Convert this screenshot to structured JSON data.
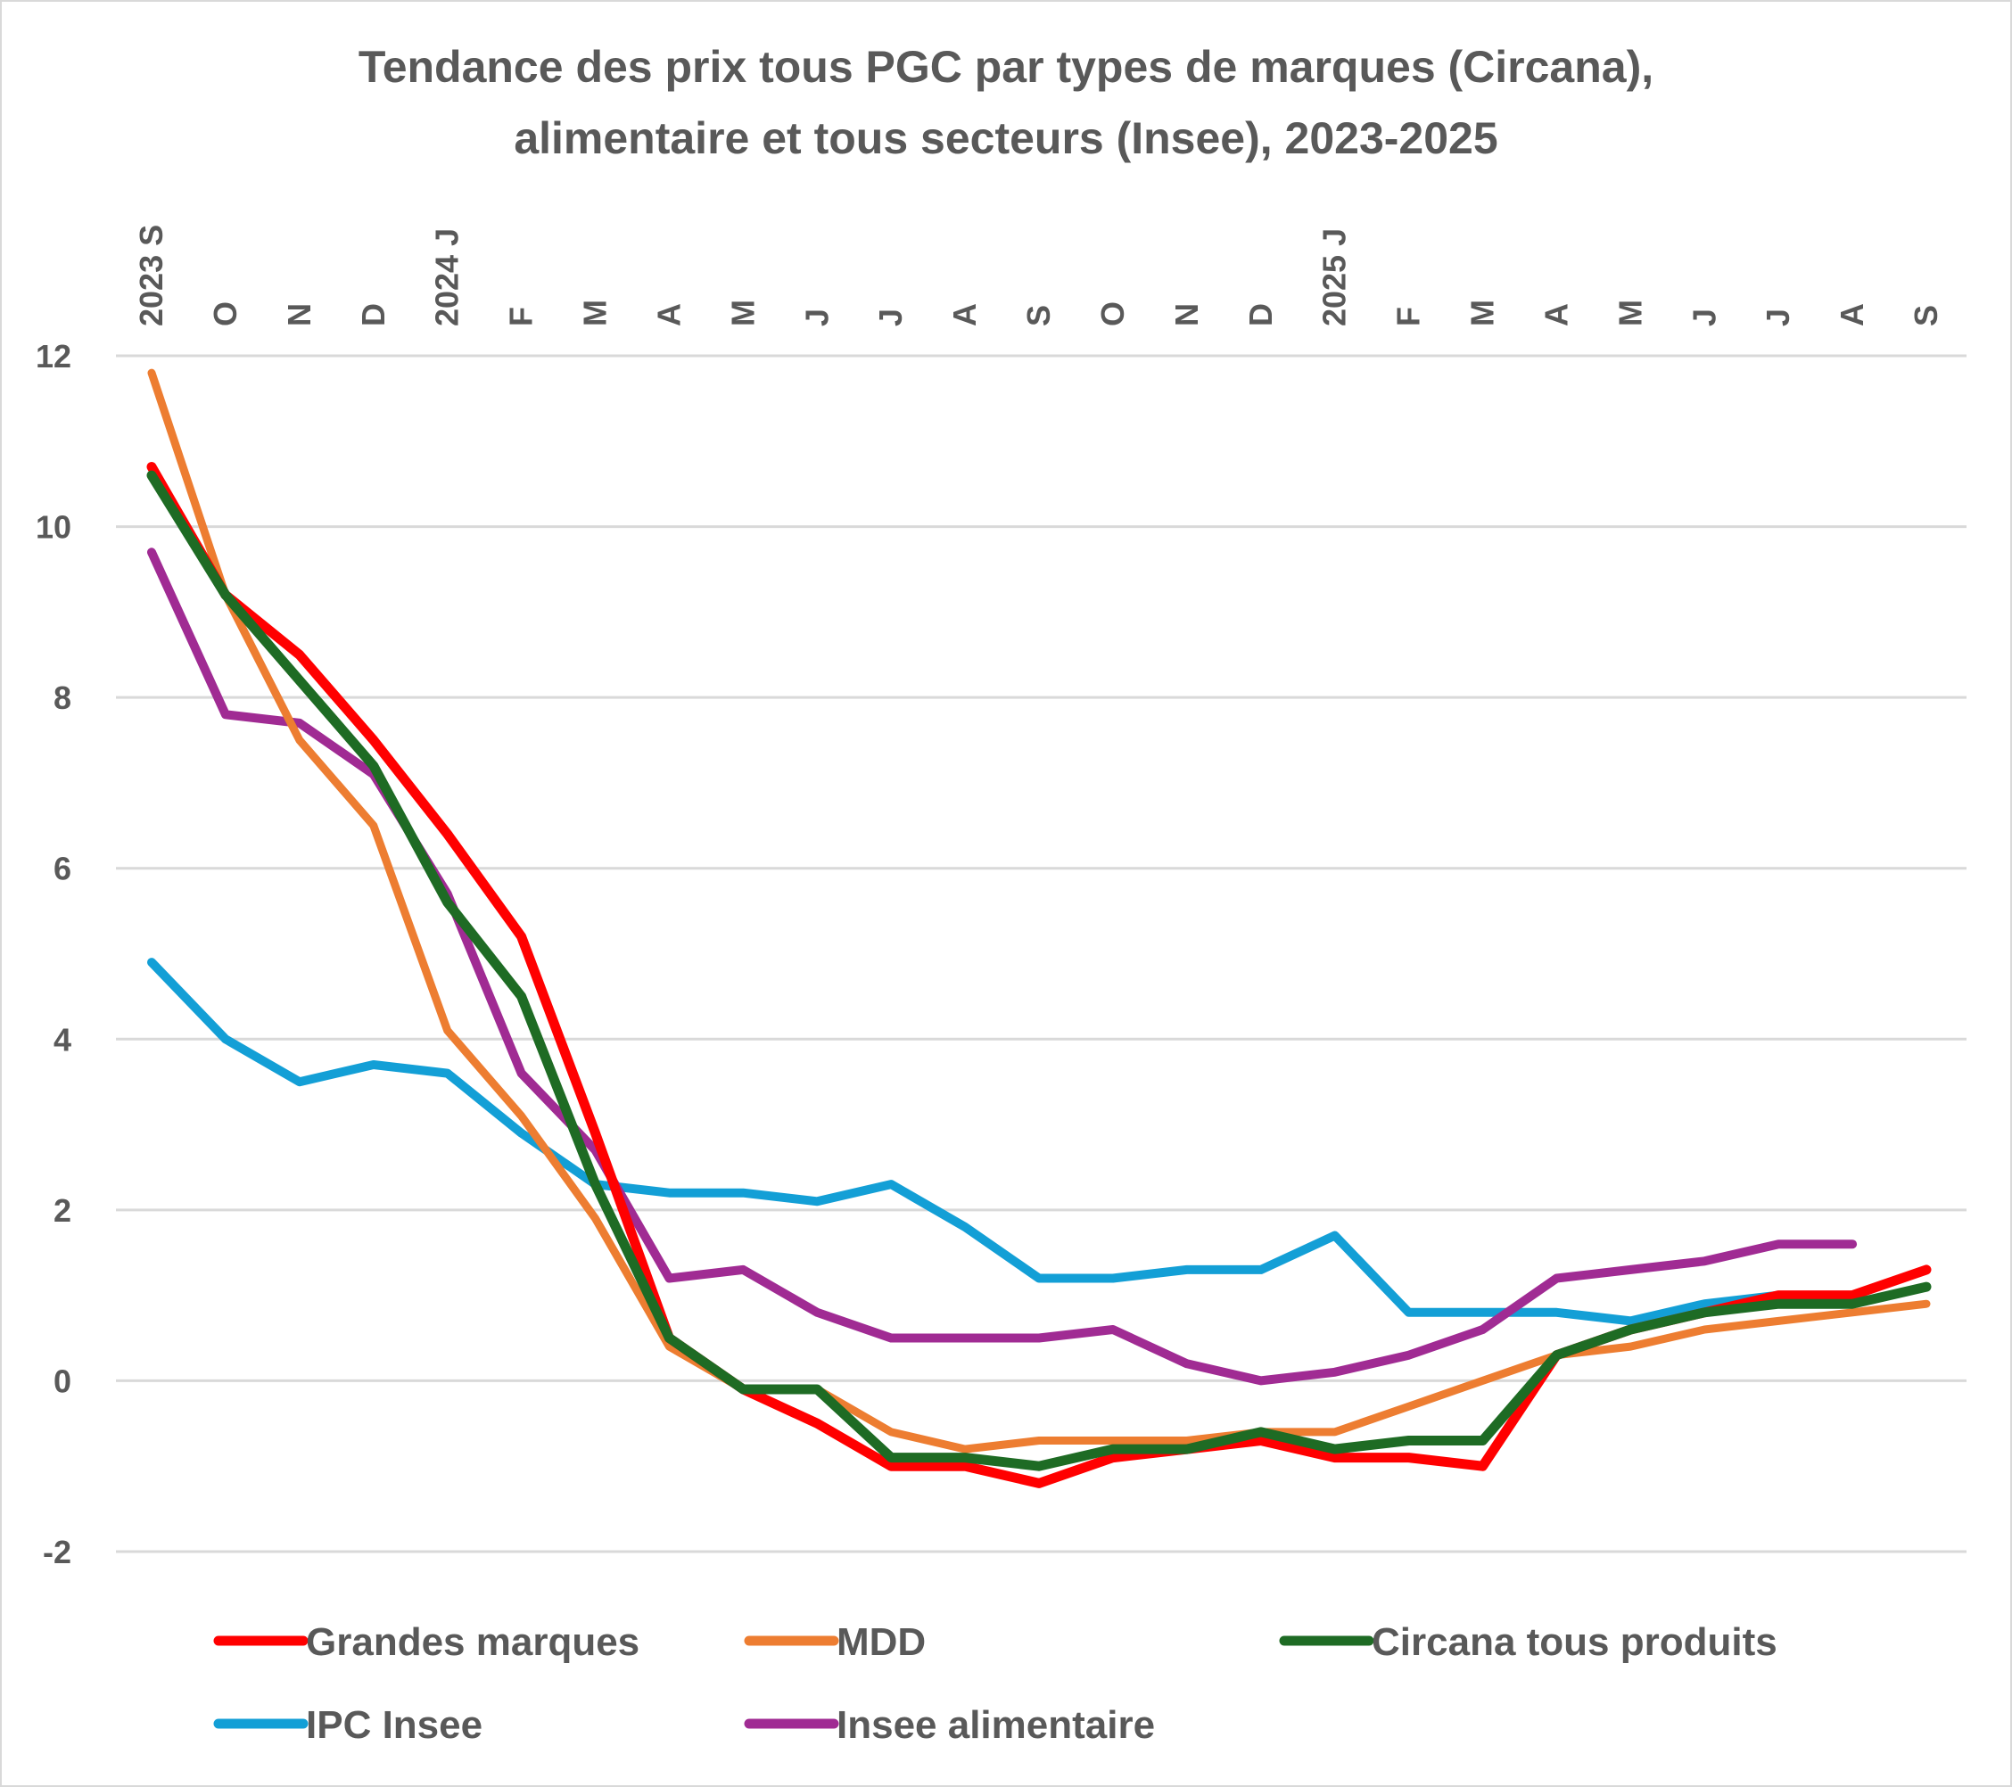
{
  "chart_data": {
    "type": "line",
    "title": "Tendance des prix tous PGC par types de marques (Circana),",
    "title_line2": "alimentaire et tous secteurs (Insee), 2023-2025",
    "xlabel": "",
    "ylabel": "",
    "ylim": [
      -2,
      12
    ],
    "yticks": [
      -2,
      0,
      2,
      4,
      6,
      8,
      10,
      12
    ],
    "ytick_labels": [
      "-2",
      "0",
      "2",
      "4",
      "6",
      "8",
      "10",
      "12"
    ],
    "grid": true,
    "legend_position": "bottom",
    "categories": [
      "2023 S",
      "O",
      "N",
      "D",
      "2024 J",
      "F",
      "M",
      "A",
      "M",
      "J",
      "J",
      "A",
      "S",
      "O",
      "N",
      "D",
      "2025 J",
      "F",
      "M",
      "A",
      "M",
      "J",
      "J",
      "A",
      "S"
    ],
    "series": [
      {
        "name": "Grandes marques",
        "color": "#ff0000",
        "values": [
          10.7,
          9.2,
          8.5,
          7.5,
          6.4,
          5.2,
          2.9,
          0.5,
          -0.1,
          -0.5,
          -1.0,
          -1.0,
          -1.2,
          -0.9,
          -0.8,
          -0.7,
          -0.9,
          -0.9,
          -1.0,
          0.3,
          0.6,
          0.8,
          1.0,
          1.0,
          1.3
        ]
      },
      {
        "name": "MDD",
        "color": "#ed7d31",
        "values": [
          11.8,
          9.2,
          7.5,
          6.5,
          4.1,
          3.1,
          1.9,
          0.4,
          -0.1,
          -0.1,
          -0.6,
          -0.8,
          -0.7,
          -0.7,
          -0.7,
          -0.6,
          -0.6,
          -0.3,
          0.0,
          0.3,
          0.4,
          0.6,
          0.7,
          0.8,
          0.9
        ]
      },
      {
        "name": "Circana tous produits",
        "color": "#1e6b24",
        "values": [
          10.6,
          9.2,
          8.2,
          7.2,
          5.6,
          4.5,
          2.3,
          0.5,
          -0.1,
          -0.1,
          -0.9,
          -0.9,
          -1.0,
          -0.8,
          -0.8,
          -0.6,
          -0.8,
          -0.7,
          -0.7,
          0.3,
          0.6,
          0.8,
          0.9,
          0.9,
          1.1
        ]
      },
      {
        "name": "IPC Insee",
        "color": "#139fd6",
        "values": [
          4.9,
          4.0,
          3.5,
          3.7,
          3.6,
          2.9,
          2.3,
          2.2,
          2.2,
          2.1,
          2.3,
          1.8,
          1.2,
          1.2,
          1.3,
          1.3,
          1.7,
          0.8,
          0.8,
          0.8,
          0.7,
          0.9,
          1.0,
          0.9,
          null
        ]
      },
      {
        "name": "Insee alimentaire",
        "color": "#a02b93",
        "values": [
          9.7,
          7.8,
          7.7,
          7.1,
          5.7,
          3.6,
          2.7,
          1.2,
          1.3,
          0.8,
          0.5,
          0.5,
          0.5,
          0.6,
          0.2,
          0.0,
          0.1,
          0.3,
          0.6,
          1.2,
          1.3,
          1.4,
          1.6,
          1.6,
          null
        ]
      }
    ],
    "gridline_color": "#d9d9d9",
    "text_color": "#595959"
  }
}
